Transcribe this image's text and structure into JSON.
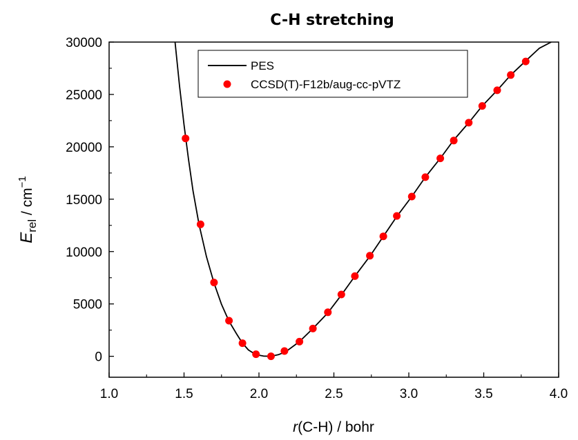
{
  "chart_data": {
    "type": "line",
    "title": "C-H stretching",
    "xlabel": {
      "italic": "r",
      "rest": "(C-H) / bohr"
    },
    "ylabel": {
      "main": "E",
      "sub": "rel",
      "unit": " / cm",
      "sup": "−1"
    },
    "xlim": [
      1.0,
      4.0
    ],
    "ylim": [
      -2000,
      30000
    ],
    "xticks": [
      "1.0",
      "1.5",
      "2.0",
      "2.5",
      "3.0",
      "3.5",
      "4.0"
    ],
    "xtick_values": [
      1.0,
      1.5,
      2.0,
      2.5,
      3.0,
      3.5,
      4.0
    ],
    "yticks": [
      "0",
      "5000",
      "10000",
      "15000",
      "20000",
      "25000",
      "30000"
    ],
    "ytick_values": [
      0,
      5000,
      10000,
      15000,
      20000,
      25000,
      30000
    ],
    "grid": false,
    "legend_position": "top-center",
    "series": [
      {
        "name": "PES",
        "kind": "line",
        "color": "#000000",
        "x": [
          1.44,
          1.47,
          1.5,
          1.53,
          1.56,
          1.6,
          1.65,
          1.7,
          1.75,
          1.8,
          1.85,
          1.89,
          1.93,
          1.98,
          2.03,
          2.08,
          2.13,
          2.18,
          2.27,
          2.36,
          2.46,
          2.55,
          2.64,
          2.74,
          2.83,
          2.92,
          3.02,
          3.11,
          3.21,
          3.3,
          3.4,
          3.49,
          3.59,
          3.68,
          3.78,
          3.87,
          3.95
        ],
        "y": [
          30000,
          25800,
          22100,
          18800,
          15800,
          12600,
          9500,
          7000,
          4950,
          3350,
          2150,
          1250,
          600,
          150,
          20,
          0,
          150,
          450,
          1400,
          2650,
          4150,
          5850,
          7650,
          9550,
          11450,
          13350,
          15250,
          17100,
          18900,
          20650,
          22300,
          23900,
          25400,
          26850,
          28200,
          29400,
          30000
        ]
      },
      {
        "name": "CCSD(T)-F12b/aug-cc-pVTZ",
        "kind": "scatter",
        "color": "#ff0000",
        "x": [
          1.51,
          1.61,
          1.7,
          1.8,
          1.89,
          1.98,
          2.08,
          2.17,
          2.27,
          2.36,
          2.46,
          2.55,
          2.64,
          2.74,
          2.83,
          2.92,
          3.02,
          3.11,
          3.21,
          3.3,
          3.4,
          3.49,
          3.59,
          3.68,
          3.78
        ],
        "y": [
          20800,
          12600,
          7050,
          3400,
          1250,
          200,
          0,
          500,
          1400,
          2650,
          4200,
          5900,
          7650,
          9600,
          11450,
          13400,
          15250,
          17100,
          18900,
          20600,
          22300,
          23900,
          25400,
          26850,
          28150
        ]
      }
    ]
  }
}
